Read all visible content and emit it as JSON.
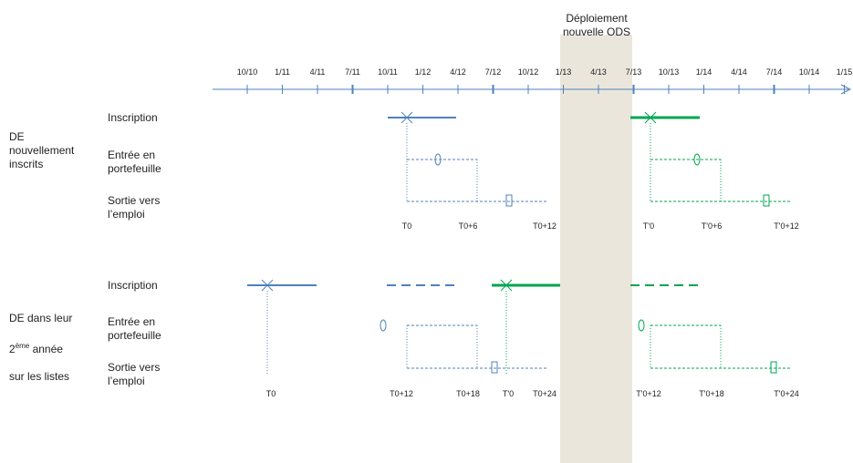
{
  "colors": {
    "blue": "#4f81bd",
    "blue_dark": "#2f5f9a",
    "green": "#00a651",
    "band": "#ebe6dc"
  },
  "band": {
    "title_line1": "Déploiement",
    "title_line2": "nouvelle ODS"
  },
  "axis": {
    "ticks": [
      "10/10",
      "1/11",
      "4/11",
      "7/11",
      "10/11",
      "1/12",
      "4/12",
      "7/12",
      "10/12",
      "1/13",
      "4/13",
      "7/13",
      "10/13",
      "1/14",
      "4/14",
      "7/14",
      "10/14",
      "1/15"
    ]
  },
  "groups": {
    "g1": "DE\nnouvellement\ninscrits",
    "g2_a": "DE dans leur",
    "g2_b_prefix": "2",
    "g2_b_sup": "ème",
    "g2_b_suffix": " année",
    "g2_c": "sur les listes"
  },
  "rows": {
    "inscription": "Inscription",
    "entree": "Entrée en\nportefeuille",
    "sortie": "Sortie vers\nl’emploi"
  },
  "t_labels": {
    "top": [
      "T0",
      "T0+6",
      "T0+12",
      "T'0",
      "T'0+6",
      "T'0+12"
    ],
    "bottom": [
      "T0",
      "T0+12",
      "T0+18",
      "T'0",
      "T0+24",
      "T'0+12",
      "T'0+18",
      "T'0+24"
    ]
  }
}
